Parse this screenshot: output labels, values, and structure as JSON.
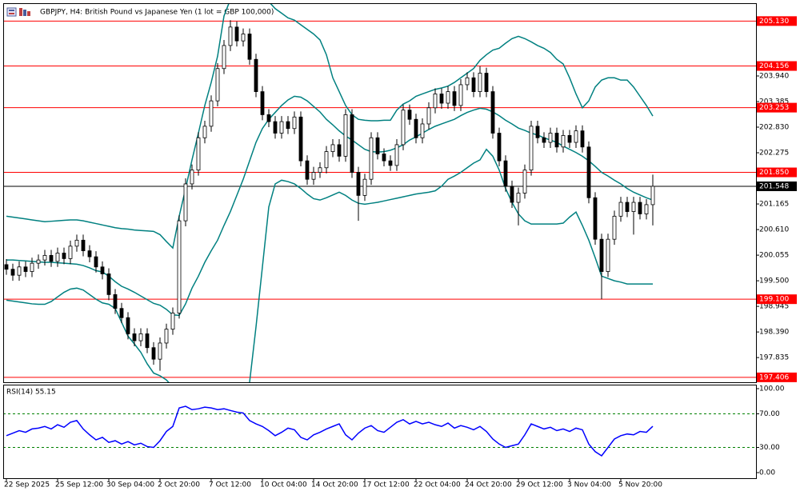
{
  "chart_data": [
    {
      "type": "candlestick",
      "title": "GBPJPY, H4:  British Pound vs Japanese Yen (1 lot = GBP 100,000)",
      "categories": [
        "22 Sep 2025",
        null,
        null,
        null,
        null,
        null,
        null,
        null,
        "25 Sep 12:00",
        null,
        null,
        null,
        null,
        null,
        null,
        null,
        "30 Sep 04:00",
        null,
        null,
        null,
        null,
        null,
        null,
        null,
        "2 Oct 20:00",
        null,
        null,
        null,
        null,
        null,
        null,
        null,
        "7 Oct 12:00",
        null,
        null,
        null,
        null,
        null,
        null,
        null,
        "10 Oct 04:00",
        null,
        null,
        null,
        null,
        null,
        null,
        null,
        "14 Oct 20:00",
        null,
        null,
        null,
        null,
        null,
        null,
        null,
        "17 Oct 12:00",
        null,
        null,
        null,
        null,
        null,
        null,
        null,
        "22 Oct 04:00",
        null,
        null,
        null,
        null,
        null,
        null,
        null,
        "24 Oct 20:00",
        null,
        null,
        null,
        null,
        null,
        null,
        null,
        "29 Oct 12:00",
        null,
        null,
        null,
        null,
        null,
        null,
        null,
        "3 Nov 04:00",
        null,
        null,
        null,
        null,
        null,
        null,
        null,
        "5 Nov 20:00",
        null,
        null,
        null,
        null,
        null
      ],
      "open": [
        199.85,
        199.75,
        199.62,
        199.8,
        199.7,
        199.88,
        199.95,
        200.05,
        199.92,
        200.1,
        199.98,
        200.25,
        200.38,
        200.15,
        200.02,
        199.8,
        199.65,
        199.2,
        198.9,
        198.7,
        198.35,
        198.2,
        198.35,
        198.05,
        197.8,
        198.15,
        198.45,
        198.8,
        200.8,
        201.6,
        201.9,
        202.6,
        202.85,
        203.4,
        204.1,
        204.6,
        205.0,
        204.7,
        204.85,
        204.3,
        203.6,
        203.1,
        202.95,
        202.7,
        202.95,
        202.8,
        203.05,
        202.1,
        201.7,
        201.85,
        201.95,
        202.3,
        202.45,
        202.2,
        203.1,
        201.85,
        201.35,
        201.7,
        202.6,
        202.25,
        202.1,
        202.0,
        202.45,
        203.2,
        203.0,
        202.6,
        202.9,
        203.25,
        203.55,
        203.35,
        203.6,
        203.3,
        203.75,
        203.9,
        203.6,
        204.0,
        203.6,
        202.7,
        202.1,
        201.55,
        201.2,
        201.4,
        201.9,
        202.85,
        202.6,
        202.5,
        202.7,
        202.4,
        202.65,
        202.5,
        202.75,
        202.4,
        201.3,
        200.4,
        199.7,
        200.4,
        200.9,
        201.2,
        201.0,
        201.2,
        200.95,
        201.15
      ],
      "high": [
        199.97,
        199.87,
        199.92,
        199.92,
        200.0,
        200.07,
        200.17,
        200.17,
        200.22,
        200.22,
        200.37,
        200.5,
        200.5,
        200.27,
        200.14,
        199.92,
        199.77,
        199.32,
        199.02,
        198.82,
        198.47,
        198.47,
        198.47,
        198.17,
        198.27,
        198.57,
        198.92,
        200.92,
        201.72,
        202.02,
        202.72,
        202.97,
        203.52,
        204.22,
        204.72,
        205.15,
        205.12,
        204.97,
        204.97,
        204.42,
        203.72,
        203.22,
        203.07,
        203.07,
        203.07,
        203.17,
        203.17,
        202.22,
        201.97,
        202.07,
        202.42,
        202.57,
        202.57,
        203.22,
        203.22,
        201.97,
        201.82,
        202.72,
        202.72,
        202.37,
        202.22,
        202.57,
        203.32,
        203.32,
        203.12,
        203.02,
        203.37,
        203.67,
        203.67,
        203.72,
        203.72,
        203.87,
        204.02,
        204.02,
        204.15,
        204.12,
        203.72,
        202.82,
        202.22,
        201.67,
        201.52,
        202.02,
        202.97,
        202.97,
        202.72,
        202.82,
        202.82,
        202.77,
        202.77,
        202.87,
        202.87,
        202.52,
        201.42,
        200.52,
        200.52,
        201.02,
        201.32,
        201.32,
        201.32,
        201.32,
        201.27,
        201.8
      ],
      "low": [
        199.63,
        199.5,
        199.5,
        199.58,
        199.58,
        199.76,
        199.83,
        199.8,
        199.8,
        199.86,
        199.86,
        200.13,
        200.03,
        199.9,
        199.68,
        199.53,
        199.08,
        198.78,
        198.58,
        198.23,
        198.08,
        198.08,
        197.93,
        197.68,
        197.55,
        198.03,
        198.33,
        198.68,
        200.68,
        201.48,
        201.78,
        202.48,
        202.73,
        203.28,
        203.98,
        204.48,
        204.58,
        204.58,
        204.18,
        203.48,
        202.98,
        202.83,
        202.58,
        202.58,
        202.68,
        202.68,
        201.98,
        201.58,
        201.58,
        201.73,
        201.83,
        202.18,
        202.08,
        202.08,
        201.73,
        200.8,
        201.23,
        201.58,
        202.13,
        201.98,
        201.88,
        201.88,
        202.33,
        202.88,
        202.48,
        202.48,
        202.78,
        203.13,
        203.23,
        203.23,
        203.18,
        203.18,
        203.63,
        203.48,
        203.48,
        203.48,
        202.58,
        201.98,
        201.43,
        201.08,
        200.7,
        201.28,
        201.78,
        202.48,
        202.38,
        202.38,
        202.28,
        202.28,
        202.38,
        202.38,
        202.28,
        201.18,
        200.28,
        199.1,
        199.58,
        200.28,
        200.78,
        200.88,
        200.5,
        200.83,
        200.83,
        200.7
      ],
      "close": [
        199.75,
        199.62,
        199.8,
        199.7,
        199.88,
        199.95,
        200.05,
        199.92,
        200.1,
        199.98,
        200.25,
        200.38,
        200.15,
        200.02,
        199.8,
        199.65,
        199.2,
        198.9,
        198.7,
        198.35,
        198.2,
        198.35,
        198.05,
        197.8,
        198.15,
        198.45,
        198.8,
        200.8,
        201.6,
        201.9,
        202.6,
        202.85,
        203.4,
        204.1,
        204.6,
        205.0,
        204.7,
        204.85,
        204.3,
        203.6,
        203.1,
        202.95,
        202.7,
        202.95,
        202.8,
        203.05,
        202.1,
        201.7,
        201.85,
        201.95,
        202.3,
        202.45,
        202.2,
        203.1,
        201.85,
        201.35,
        201.7,
        202.6,
        202.25,
        202.1,
        202.0,
        202.45,
        203.2,
        203.0,
        202.6,
        202.9,
        203.25,
        203.55,
        203.35,
        203.6,
        203.3,
        203.75,
        203.9,
        203.6,
        204.0,
        203.6,
        202.7,
        202.1,
        201.55,
        201.2,
        201.4,
        201.9,
        202.85,
        202.6,
        202.5,
        202.7,
        202.4,
        202.65,
        202.5,
        202.75,
        202.4,
        201.3,
        200.4,
        199.7,
        200.4,
        200.9,
        201.2,
        201.0,
        201.2,
        200.95,
        201.15,
        201.548
      ],
      "up_color": "#ffffff",
      "down_color": "#000000",
      "bands": [
        {
          "color": "#008080",
          "values": [
            200.9,
            200.88,
            200.86,
            200.84,
            200.82,
            200.8,
            200.78,
            200.79,
            200.8,
            200.81,
            200.82,
            200.82,
            200.8,
            200.77,
            200.74,
            200.71,
            200.68,
            200.65,
            200.63,
            200.62,
            200.6,
            200.59,
            200.58,
            200.57,
            200.5,
            200.35,
            200.21,
            200.9,
            201.5,
            202.12,
            202.7,
            203.3,
            203.8,
            204.37,
            205.24,
            205.6,
            205.8,
            205.9,
            205.9,
            205.85,
            205.7,
            205.55,
            205.4,
            205.3,
            205.2,
            205.15,
            205.05,
            204.95,
            204.85,
            204.72,
            204.4,
            203.9,
            203.6,
            203.3,
            203.1,
            203.0,
            202.98,
            202.97,
            202.97,
            202.98,
            202.98,
            203.2,
            203.33,
            203.4,
            203.5,
            203.55,
            203.6,
            203.65,
            203.68,
            203.72,
            203.8,
            203.9,
            204.0,
            204.1,
            204.28,
            204.4,
            204.5,
            204.54,
            204.65,
            204.75,
            204.8,
            204.75,
            204.68,
            204.6,
            204.54,
            204.45,
            204.3,
            204.2,
            203.9,
            203.55,
            203.25,
            203.4,
            203.7,
            203.85,
            203.9,
            203.9,
            203.85,
            203.85,
            203.7,
            203.5,
            203.3,
            203.07
          ]
        },
        {
          "color": "#008080",
          "values": [
            199.95,
            199.95,
            199.94,
            199.93,
            199.92,
            199.91,
            199.9,
            199.9,
            199.89,
            199.88,
            199.87,
            199.86,
            199.83,
            199.78,
            199.72,
            199.69,
            199.6,
            199.48,
            199.38,
            199.32,
            199.25,
            199.17,
            199.09,
            199.01,
            198.97,
            198.88,
            198.76,
            198.75,
            199.0,
            199.34,
            199.6,
            199.9,
            200.15,
            200.38,
            200.7,
            201.0,
            201.35,
            201.7,
            202.1,
            202.5,
            202.8,
            203.0,
            203.15,
            203.3,
            203.42,
            203.5,
            203.48,
            203.4,
            203.28,
            203.16,
            203.0,
            202.88,
            202.75,
            202.64,
            202.55,
            202.45,
            202.35,
            202.3,
            202.29,
            202.3,
            202.33,
            202.38,
            202.45,
            202.55,
            202.62,
            202.7,
            202.78,
            202.85,
            202.9,
            202.95,
            203.0,
            203.08,
            203.15,
            203.2,
            203.24,
            203.22,
            203.16,
            203.08,
            202.98,
            202.9,
            202.81,
            202.76,
            202.7,
            202.66,
            202.6,
            202.55,
            202.5,
            202.42,
            202.35,
            202.28,
            202.2,
            202.1,
            201.98,
            201.85,
            201.77,
            201.68,
            201.6,
            201.5,
            201.42,
            201.36,
            201.3,
            201.25
          ]
        },
        {
          "color": "#008080",
          "values": [
            199.08,
            199.06,
            199.04,
            199.02,
            199.0,
            198.99,
            198.99,
            199.05,
            199.15,
            199.25,
            199.32,
            199.34,
            199.3,
            199.2,
            199.1,
            199.02,
            198.99,
            198.9,
            198.6,
            198.3,
            198.13,
            197.95,
            197.7,
            197.5,
            197.44,
            197.35,
            197.2,
            197.0,
            196.7,
            196.4,
            196.0,
            195.7,
            195.6,
            195.6,
            195.7,
            195.9,
            196.3,
            196.8,
            197.3,
            198.5,
            199.8,
            201.1,
            201.6,
            201.68,
            201.65,
            201.6,
            201.5,
            201.38,
            201.28,
            201.25,
            201.3,
            201.36,
            201.42,
            201.35,
            201.25,
            201.18,
            201.16,
            201.18,
            201.2,
            201.23,
            201.26,
            201.29,
            201.32,
            201.35,
            201.38,
            201.4,
            201.42,
            201.45,
            201.55,
            201.7,
            201.77,
            201.85,
            201.95,
            202.05,
            202.12,
            202.35,
            202.2,
            201.9,
            201.5,
            201.2,
            200.95,
            200.8,
            200.73,
            200.73,
            200.73,
            200.73,
            200.73,
            200.75,
            200.88,
            200.99,
            200.7,
            200.38,
            200.0,
            199.6,
            199.55,
            199.5,
            199.47,
            199.43,
            199.43,
            199.43,
            199.43,
            199.43
          ]
        }
      ],
      "ylim": [
        197.3,
        205.5
      ],
      "yticks": [
        197.835,
        {
          "value": 198.39,
          "label": "198.390"
        },
        198.945,
        {
          "value": 199.5,
          "label": "199.500"
        },
        200.055,
        {
          "value": 200.61,
          "label": "200.610"
        },
        201.165,
        202.275,
        {
          "value": 202.83,
          "label": "202.830"
        },
        203.385,
        {
          "value": 203.94,
          "label": "203.940"
        }
      ],
      "levels": [
        {
          "value": 205.13,
          "label": "205.130"
        },
        204.156,
        203.253,
        {
          "value": 201.85,
          "label": "201.850"
        },
        {
          "value": 199.1,
          "label": "199.100"
        },
        197.406
      ],
      "level_color": "#ff0000",
      "last_price": 201.548,
      "last_price_color": "#000000"
    },
    {
      "type": "line",
      "title": "RSI(14) 55.15",
      "series": [
        {
          "color": "#0000ff",
          "values": [
            44,
            47,
            50,
            48,
            52,
            53,
            55,
            52,
            57,
            54,
            60,
            62,
            52,
            45,
            39,
            42,
            36,
            38,
            34,
            37,
            33,
            35,
            31,
            30,
            38,
            49,
            55,
            77,
            79,
            75,
            76,
            78,
            77,
            75,
            76,
            74,
            72,
            71,
            62,
            58,
            55,
            50,
            44,
            48,
            53,
            51,
            42,
            39,
            45,
            48,
            52,
            55,
            58,
            45,
            39,
            47,
            53,
            56,
            50,
            48,
            54,
            60,
            63,
            58,
            61,
            58,
            60,
            57,
            55,
            59,
            53,
            56,
            54,
            51,
            55,
            49,
            40,
            34,
            30,
            32,
            34,
            45,
            58,
            55,
            52,
            54,
            50,
            52,
            49,
            53,
            51,
            34,
            25,
            20,
            30,
            40,
            44,
            46,
            45,
            49,
            48,
            55.15
          ]
        }
      ],
      "ylim": [
        0,
        100
      ],
      "yticks": [
        {
          "value": 100,
          "label": "100.00"
        },
        {
          "value": 70,
          "label": "70.00"
        },
        {
          "value": 30,
          "label": "30.00"
        },
        {
          "value": 0,
          "label": "0.00"
        }
      ],
      "levels": [
        70,
        30
      ],
      "level_style": "dashed"
    }
  ]
}
